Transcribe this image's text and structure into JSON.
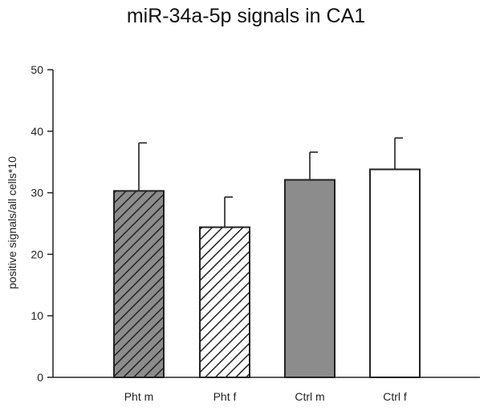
{
  "chart_data": {
    "type": "bar",
    "title": "miR-34a-5p signals in CA1",
    "xlabel": "",
    "ylabel": "positive signals/all cells*10",
    "ylim": [
      0,
      50
    ],
    "yticks": [
      0,
      10,
      20,
      30,
      40,
      50
    ],
    "grid": false,
    "categories": [
      "Pht m",
      "Pht f",
      "Ctrl m",
      "Ctrl f"
    ],
    "values": [
      30.3,
      24.4,
      32.1,
      33.8
    ],
    "error_upper": [
      38.1,
      29.3,
      36.6,
      38.9
    ],
    "bar_styles": [
      {
        "fill": "#8c8c8c",
        "hatch": true
      },
      {
        "fill": "#ffffff",
        "hatch": true
      },
      {
        "fill": "#8c8c8c",
        "hatch": false
      },
      {
        "fill": "#ffffff",
        "hatch": false
      }
    ]
  }
}
